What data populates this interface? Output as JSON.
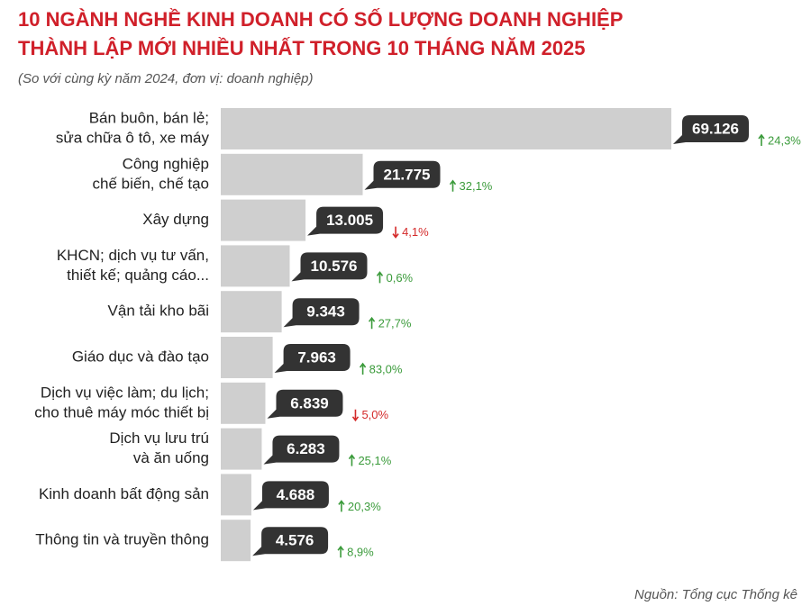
{
  "chart_data": {
    "type": "bar",
    "orientation": "horizontal",
    "title": [
      "10 NGÀNH NGHỀ KINH DOANH CÓ SỐ LƯỢNG DOANH NGHIỆP",
      "THÀNH LẬP MỚI NHIỀU NHẤT TRONG 10 THÁNG NĂM 2025"
    ],
    "subtitle": "(So với cùng kỳ năm 2024, đơn vị: doanh nghiệp)",
    "source": "Nguồn: Tổng cục Thống kê",
    "categories": [
      [
        "Bán buôn, bán lẻ;",
        "sửa chữa ô tô, xe máy"
      ],
      [
        "Công nghiệp",
        "chế biến, chế tạo"
      ],
      [
        "Xây dựng"
      ],
      [
        "KHCN; dịch vụ tư vấn,",
        "thiết kế; quảng cáo..."
      ],
      [
        "Vận tải kho bãi"
      ],
      [
        "Giáo dục và đào tạo"
      ],
      [
        "Dịch vụ việc làm; du lịch;",
        "cho thuê máy móc thiết bị"
      ],
      [
        "Dịch vụ lưu trú",
        "và ăn uống"
      ],
      [
        "Kinh doanh bất động sản"
      ],
      [
        "Thông tin và truyền thông"
      ]
    ],
    "values": [
      69126,
      21775,
      13005,
      10576,
      9343,
      7963,
      6839,
      6283,
      4688,
      4576
    ],
    "value_labels": [
      "69.126",
      "21.775",
      "13.005",
      "10.576",
      "9.343",
      "7.963",
      "6.839",
      "6.283",
      "4.688",
      "4.576"
    ],
    "color": "#cfcfcf",
    "label_color": "#333333",
    "changes": {
      "values": [
        24.3,
        32.1,
        -4.1,
        0.6,
        27.7,
        83.0,
        -5.0,
        25.1,
        20.3,
        8.9
      ],
      "value_labels": [
        "24,3%",
        "32,1%",
        "4,1%",
        "0,6%",
        "27,7%",
        "83,0%",
        "5,0%",
        "25,1%",
        "20,3%",
        "8,9%"
      ],
      "up_color": "#3b9b3b",
      "down_color": "#d42a2a"
    },
    "title_color": "#d0202a"
  }
}
